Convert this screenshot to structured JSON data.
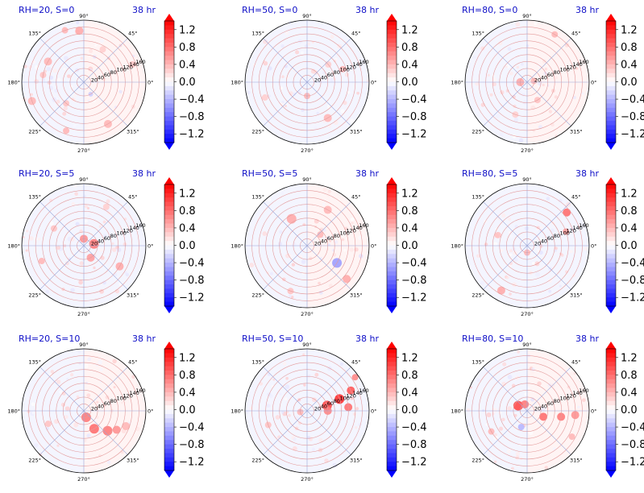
{
  "figure": {
    "time_label": "38 hr",
    "colorbar": {
      "cmap": "bwr",
      "range": [
        -1.4,
        1.4
      ],
      "ticks": [
        1.2,
        0.8,
        0.4,
        0.0,
        -0.4,
        -0.8,
        -1.2
      ],
      "tick_labels": [
        "1.2",
        "0.8",
        "0.4",
        "0.0",
        "−0.4",
        "−0.8",
        "−1.2"
      ],
      "extend": "both"
    },
    "colors": {
      "title": "#1010c8",
      "positive": "#ff0000",
      "negative": "#0000ff",
      "neutral": "#ffffff"
    }
  },
  "chart_data": [
    {
      "type": "heatmap",
      "projection": "polar",
      "title": "RH=20, S=0",
      "title_right": "38 hr",
      "r_ticks": [
        "20",
        "40",
        "60",
        "80",
        "100",
        "120",
        "140",
        "160"
      ],
      "theta_ticks": [
        "0°",
        "45°",
        "90°",
        "135°",
        "180°",
        "225°",
        "270°",
        "315°"
      ],
      "rmax": 180,
      "values": "weak positive anomalies scattered along rings, mostly near zero"
    },
    {
      "type": "heatmap",
      "projection": "polar",
      "title": "RH=50, S=0",
      "title_right": "38 hr",
      "r_ticks": [
        "20",
        "40",
        "60",
        "80",
        "100",
        "120",
        "140",
        "160"
      ],
      "theta_ticks": [
        "0°",
        "45°",
        "90°",
        "135°",
        "180°",
        "225°",
        "270°",
        "315°"
      ],
      "rmax": 180,
      "values": "near zero, faint speckles"
    },
    {
      "type": "heatmap",
      "projection": "polar",
      "title": "RH=80, S=0",
      "title_right": "38 hr",
      "r_ticks": [
        "20",
        "40",
        "60",
        "80",
        "100",
        "120",
        "140",
        "160"
      ],
      "theta_ticks": [
        "0°",
        "45°",
        "90°",
        "135°",
        "180°",
        "225°",
        "270°",
        "315°"
      ],
      "rmax": 180,
      "values": "weak positive ring near center"
    },
    {
      "type": "heatmap",
      "projection": "polar",
      "title": "RH=20, S=5",
      "title_right": "38 hr",
      "r_ticks": [
        "20",
        "40",
        "60",
        "80",
        "100",
        "120",
        "140",
        "160"
      ],
      "theta_ticks": [
        "0°",
        "45°",
        "90°",
        "135°",
        "180°",
        "225°",
        "270°",
        "315°"
      ],
      "rmax": 180,
      "values": "positive patches near center"
    },
    {
      "type": "heatmap",
      "projection": "polar",
      "title": "RH=50, S=5",
      "title_right": "38 hr",
      "r_ticks": [
        "20",
        "40",
        "60",
        "80",
        "100",
        "120",
        "140",
        "160"
      ],
      "theta_ticks": [
        "0°",
        "45°",
        "90°",
        "135°",
        "180°",
        "225°",
        "270°",
        "315°"
      ],
      "rmax": 180,
      "values": "weak positive arcs, small negative patch to southeast"
    },
    {
      "type": "heatmap",
      "projection": "polar",
      "title": "RH=80, S=5",
      "title_right": "38 hr",
      "r_ticks": [
        "20",
        "40",
        "60",
        "80",
        "100",
        "120",
        "140",
        "160"
      ],
      "theta_ticks": [
        "0°",
        "45°",
        "90°",
        "135°",
        "180°",
        "225°",
        "270°",
        "315°"
      ],
      "rmax": 180,
      "values": "scattered positive patches"
    },
    {
      "type": "heatmap",
      "projection": "polar",
      "title": "RH=20, S=10",
      "title_right": "38 hr",
      "r_ticks": [
        "20",
        "40",
        "60",
        "80",
        "100",
        "120",
        "140",
        "160"
      ],
      "theta_ticks": [
        "0°",
        "45°",
        "90°",
        "135°",
        "180°",
        "225°",
        "270°",
        "315°"
      ],
      "rmax": 180,
      "values": "positive arc to south/southeast of center"
    },
    {
      "type": "heatmap",
      "projection": "polar",
      "title": "RH=50, S=10",
      "title_right": "38 hr",
      "r_ticks": [
        "20",
        "40",
        "60",
        "80",
        "100",
        "120",
        "140",
        "160"
      ],
      "theta_ticks": [
        "0°",
        "45°",
        "90°",
        "135°",
        "180°",
        "225°",
        "270°",
        "315°"
      ],
      "rmax": 180,
      "values": "strong positive band toward east/northeast"
    },
    {
      "type": "heatmap",
      "projection": "polar",
      "title": "RH=80, S=10",
      "title_right": "38 hr",
      "r_ticks": [
        "20",
        "40",
        "60",
        "80",
        "100",
        "120",
        "140",
        "160"
      ],
      "theta_ticks": [
        "0°",
        "45°",
        "90°",
        "135°",
        "180°",
        "225°",
        "270°",
        "315°"
      ],
      "rmax": 180,
      "values": "strong positive near center with band toward east"
    }
  ]
}
